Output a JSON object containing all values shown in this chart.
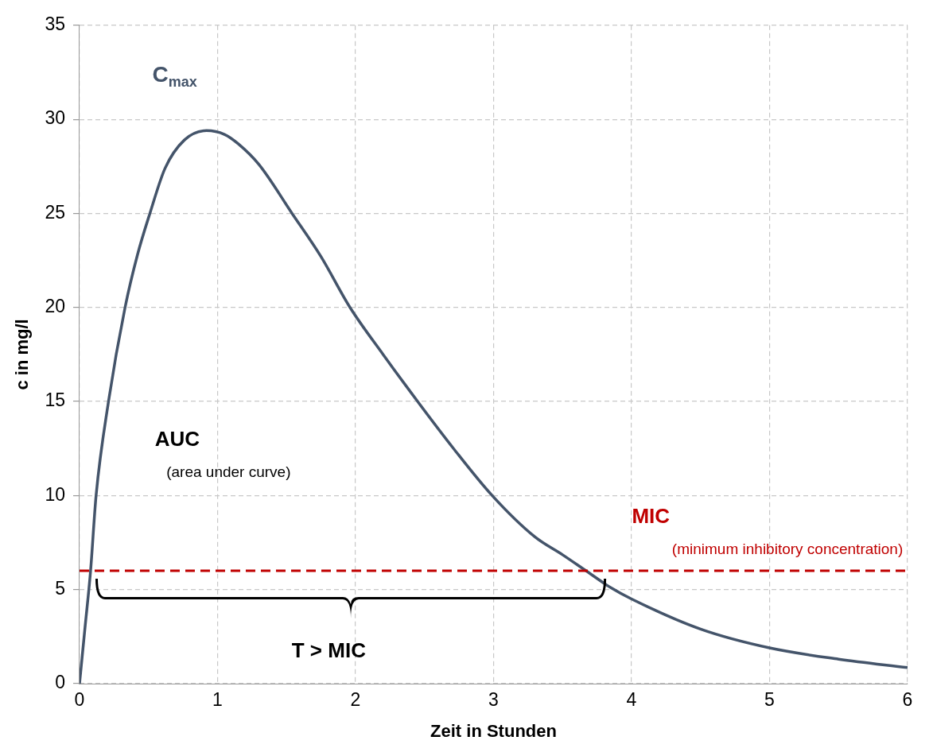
{
  "chart_data": {
    "type": "line",
    "xlabel": "Zeit in Stunden",
    "ylabel": "c in mg/l",
    "x": [
      0,
      0.04,
      0.08,
      0.12,
      0.21,
      0.33,
      0.42,
      0.51,
      0.62,
      0.76,
      0.92,
      1.05,
      1.15,
      1.3,
      1.54,
      1.75,
      1.96,
      2.2,
      2.45,
      2.71,
      2.99,
      3.3,
      3.5,
      3.67,
      3.85,
      4,
      4.5,
      5,
      5.5,
      6
    ],
    "series": [
      {
        "color": "#44546a",
        "values": [
          0,
          3,
          6,
          10,
          15,
          20,
          22.8,
          25,
          27.4,
          28.9,
          29.4,
          29.2,
          28.7,
          27.6,
          25,
          22.7,
          20,
          17.5,
          15,
          12.5,
          10,
          7.8,
          6.85,
          6,
          5.1,
          4.5,
          2.9,
          1.9,
          1.3,
          0.85
        ]
      }
    ],
    "xlim": [
      0,
      6
    ],
    "xticks": [
      0,
      1,
      2,
      3,
      4,
      5,
      6
    ],
    "ylim": [
      0,
      35
    ],
    "yticks": [
      0,
      5,
      10,
      15,
      20,
      25,
      30,
      35
    ],
    "grid": true,
    "legend": false,
    "marker": "none",
    "line_style": "solid",
    "ref_lines": [
      {
        "axis": "y",
        "value": 6,
        "color": "#c00000",
        "line_style": "dashed"
      }
    ],
    "annotations": [
      "C$_{max}$",
      "AUC",
      "(area under curve)",
      "T > MIC",
      "MIC",
      "(minimum inhibitory concentration)"
    ]
  }
}
